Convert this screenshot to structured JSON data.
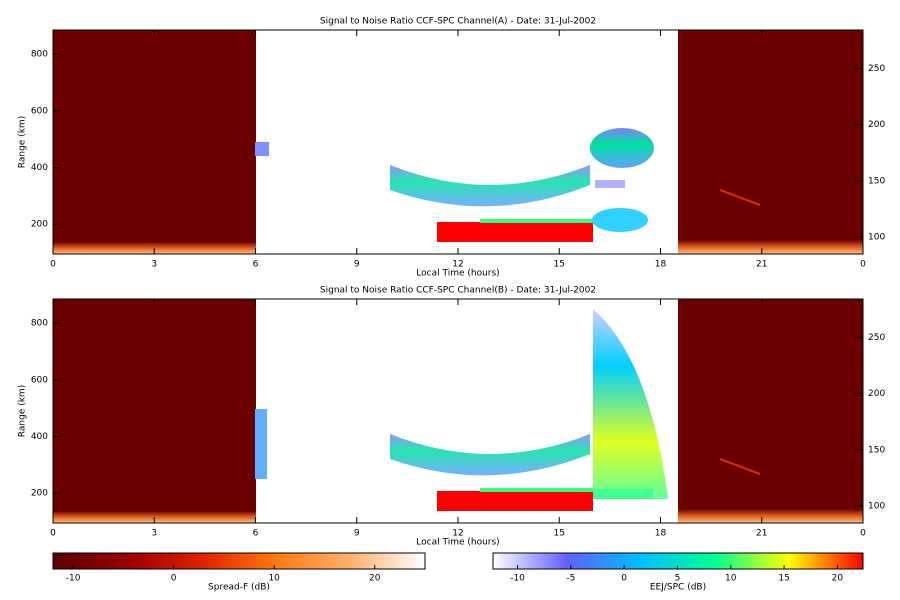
{
  "chart_data": [
    {
      "type": "heatmap",
      "title": "Signal to Noise Ratio CCF-SPC Channel(A) - Date: 31-Jul-2002",
      "xlabel": "Local Time (hours)",
      "ylabel": "Range (km)",
      "xlim": [
        0,
        24
      ],
      "xticks": [
        0,
        3,
        6,
        9,
        12,
        15,
        18,
        21,
        {
          "value": 24,
          "label": "0"
        }
      ],
      "ylim": [
        95,
        885
      ],
      "yticks": [
        200,
        400,
        600,
        800
      ],
      "y2lim": [
        85,
        284
      ],
      "y2ticks": [
        100,
        150,
        200,
        250
      ]
    },
    {
      "type": "heatmap",
      "title": "Signal to Noise Ratio CCF-SPC Channel(B) - Date: 31-Jul-2002",
      "xlabel": "Local Time (hours)",
      "ylabel": "Range (km)",
      "xlim": [
        0,
        24
      ],
      "xticks": [
        0,
        3,
        6,
        9,
        12,
        15,
        18,
        21,
        {
          "value": 24,
          "label": "0"
        }
      ],
      "ylim": [
        95,
        885
      ],
      "yticks": [
        200,
        400,
        600,
        800
      ],
      "y2lim": [
        85,
        284
      ],
      "y2ticks": [
        100,
        150,
        200,
        250
      ]
    },
    {
      "type": "colorbar",
      "label": "Spread-F (dB)",
      "lim": [
        -12,
        25
      ],
      "ticks": [
        -10,
        0,
        10,
        20
      ],
      "colors": [
        "#5a0000",
        "#9a0000",
        "#e02000",
        "#ff7a10",
        "#ffb070",
        "#ffffff"
      ]
    },
    {
      "type": "colorbar",
      "label": "EEJ/SPC (dB)",
      "lim": [
        -12.3,
        22.4
      ],
      "ticks": [
        -10,
        -5,
        0,
        5,
        10,
        15,
        20
      ],
      "colors": [
        "#ffffff",
        "#6060ff",
        "#00c0ff",
        "#00ff90",
        "#ffff00",
        "#ff0000"
      ]
    }
  ]
}
